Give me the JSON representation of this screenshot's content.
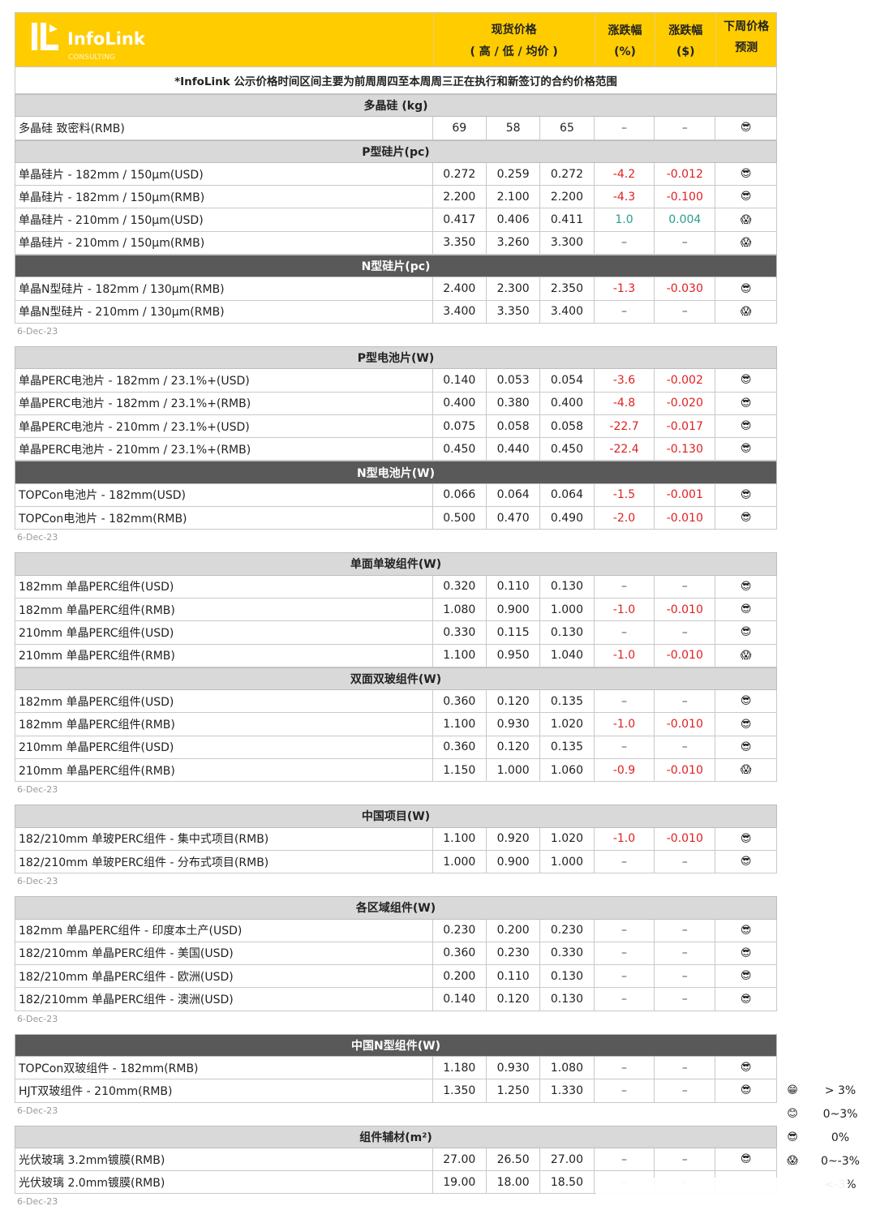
{
  "header": {
    "brand": "InfoLink",
    "brand_sub": "CONSULTING",
    "spot_price": "现货价格",
    "spot_sub": "( 高 / 低 / 均价 )",
    "chg_pct": "涨跌幅",
    "chg_pct_unit": "(%)",
    "chg_usd": "涨跌幅",
    "chg_usd_unit": "($)",
    "forecast": "下周价格",
    "forecast_sub": "预测"
  },
  "notice": "*InfoLink 公示价格时间区间主要为前周周四至本周周三正在执行和新签订的合约价格范围",
  "colors": {
    "header_bg": "#ffcc00",
    "section_light": "#d9d9d9",
    "section_dark": "#595959",
    "negative": "#e02020",
    "positive": "#2a9d8f"
  },
  "icons": {
    "sunglasses": "😎",
    "scream": "😱",
    "grin": "😁",
    "smile": "😊"
  },
  "blocks": [
    {
      "date": "6-Dec-23",
      "sections": [
        {
          "title": "多晶硅 (kg)",
          "dark": false,
          "rows": [
            [
              "多晶硅 致密料(RMB)",
              "69",
              "58",
              "65",
              "–",
              "–",
              "sunglasses"
            ]
          ]
        },
        {
          "title": "P型硅片(pc)",
          "dark": false,
          "rows": [
            [
              "单晶硅片 - 182mm / 150μm(USD)",
              "0.272",
              "0.259",
              "0.272",
              "-4.2",
              "-0.012",
              "sunglasses"
            ],
            [
              "单晶硅片 - 182mm / 150μm(RMB)",
              "2.200",
              "2.100",
              "2.200",
              "-4.3",
              "-0.100",
              "sunglasses"
            ],
            [
              "单晶硅片 - 210mm / 150μm(USD)",
              "0.417",
              "0.406",
              "0.411",
              "1.0",
              "0.004",
              "scream"
            ],
            [
              "单晶硅片 - 210mm / 150μm(RMB)",
              "3.350",
              "3.260",
              "3.300",
              "–",
              "–",
              "scream"
            ]
          ]
        },
        {
          "title": "N型硅片(pc)",
          "dark": true,
          "rows": [
            [
              "单晶N型硅片 - 182mm / 130μm(RMB)",
              "2.400",
              "2.300",
              "2.350",
              "-1.3",
              "-0.030",
              "sunglasses"
            ],
            [
              "单晶N型硅片 - 210mm / 130μm(RMB)",
              "3.400",
              "3.350",
              "3.400",
              "–",
              "–",
              "scream"
            ]
          ]
        }
      ]
    },
    {
      "date": "6-Dec-23",
      "sections": [
        {
          "title": "P型电池片(W)",
          "dark": false,
          "rows": [
            [
              "单晶PERC电池片 - 182mm / 23.1%+(USD)",
              "0.140",
              "0.053",
              "0.054",
              "-3.6",
              "-0.002",
              "sunglasses"
            ],
            [
              "单晶PERC电池片 - 182mm / 23.1%+(RMB)",
              "0.400",
              "0.380",
              "0.400",
              "-4.8",
              "-0.020",
              "sunglasses"
            ],
            [
              "单晶PERC电池片 - 210mm / 23.1%+(USD)",
              "0.075",
              "0.058",
              "0.058",
              "-22.7",
              "-0.017",
              "sunglasses"
            ],
            [
              "单晶PERC电池片 - 210mm / 23.1%+(RMB)",
              "0.450",
              "0.440",
              "0.450",
              "-22.4",
              "-0.130",
              "sunglasses"
            ]
          ]
        },
        {
          "title": "N型电池片(W)",
          "dark": true,
          "rows": [
            [
              "TOPCon电池片 - 182mm(USD)",
              "0.066",
              "0.064",
              "0.064",
              "-1.5",
              "-0.001",
              "sunglasses"
            ],
            [
              "TOPCon电池片 - 182mm(RMB)",
              "0.500",
              "0.470",
              "0.490",
              "-2.0",
              "-0.010",
              "sunglasses"
            ]
          ]
        }
      ]
    },
    {
      "date": "6-Dec-23",
      "sections": [
        {
          "title": "单面单玻组件(W)",
          "dark": false,
          "rows": [
            [
              "182mm 单晶PERC组件(USD)",
              "0.320",
              "0.110",
              "0.130",
              "–",
              "–",
              "sunglasses"
            ],
            [
              "182mm 单晶PERC组件(RMB)",
              "1.080",
              "0.900",
              "1.000",
              "-1.0",
              "-0.010",
              "sunglasses"
            ],
            [
              "210mm 单晶PERC组件(USD)",
              "0.330",
              "0.115",
              "0.130",
              "–",
              "–",
              "sunglasses"
            ],
            [
              "210mm 单晶PERC组件(RMB)",
              "1.100",
              "0.950",
              "1.040",
              "-1.0",
              "-0.010",
              "scream"
            ]
          ]
        },
        {
          "title": "双面双玻组件(W)",
          "dark": false,
          "rows": [
            [
              "182mm 单晶PERC组件(USD)",
              "0.360",
              "0.120",
              "0.135",
              "–",
              "–",
              "sunglasses"
            ],
            [
              "182mm 单晶PERC组件(RMB)",
              "1.100",
              "0.930",
              "1.020",
              "-1.0",
              "-0.010",
              "sunglasses"
            ],
            [
              "210mm 单晶PERC组件(USD)",
              "0.360",
              "0.120",
              "0.135",
              "–",
              "–",
              "sunglasses"
            ],
            [
              "210mm 单晶PERC组件(RMB)",
              "1.150",
              "1.000",
              "1.060",
              "-0.9",
              "-0.010",
              "scream"
            ]
          ]
        }
      ]
    },
    {
      "date": "6-Dec-23",
      "sections": [
        {
          "title": "中国项目(W)",
          "dark": false,
          "rows": [
            [
              "182/210mm 单玻PERC组件 - 集中式项目(RMB)",
              "1.100",
              "0.920",
              "1.020",
              "-1.0",
              "-0.010",
              "sunglasses"
            ],
            [
              "182/210mm 单玻PERC组件 - 分布式项目(RMB)",
              "1.000",
              "0.900",
              "1.000",
              "–",
              "–",
              "sunglasses"
            ]
          ]
        }
      ]
    },
    {
      "date": "6-Dec-23",
      "sections": [
        {
          "title": "各区域组件(W)",
          "dark": false,
          "rows": [
            [
              "182mm 单晶PERC组件 - 印度本土产(USD)",
              "0.230",
              "0.200",
              "0.230",
              "–",
              "–",
              "sunglasses"
            ],
            [
              "182/210mm 单晶PERC组件 - 美国(USD)",
              "0.360",
              "0.230",
              "0.330",
              "–",
              "–",
              "sunglasses"
            ],
            [
              "182/210mm 单晶PERC组件 - 欧洲(USD)",
              "0.200",
              "0.110",
              "0.130",
              "–",
              "–",
              "sunglasses"
            ],
            [
              "182/210mm 单晶PERC组件 - 澳洲(USD)",
              "0.140",
              "0.120",
              "0.130",
              "–",
              "–",
              "sunglasses"
            ]
          ]
        }
      ]
    },
    {
      "date": "6-Dec-23",
      "sections": [
        {
          "title": "中国N型组件(W)",
          "dark": true,
          "rows": [
            [
              "TOPCon双玻组件 - 182mm(RMB)",
              "1.180",
              "0.930",
              "1.080",
              "–",
              "–",
              "sunglasses"
            ],
            [
              "HJT双玻组件 - 210mm(RMB)",
              "1.350",
              "1.250",
              "1.330",
              "–",
              "–",
              "sunglasses"
            ]
          ]
        }
      ]
    },
    {
      "date": "6-Dec-23",
      "sections": [
        {
          "title": "组件辅材(m²)",
          "dark": false,
          "rows": [
            [
              "光伏玻璃 3.2mm镀膜(RMB)",
              "27.00",
              "26.50",
              "27.00",
              "–",
              "–",
              "sunglasses"
            ],
            [
              "光伏玻璃 2.0mm镀膜(RMB)",
              "19.00",
              "18.00",
              "18.50",
              "–",
              "–",
              ""
            ]
          ]
        }
      ]
    }
  ],
  "legend": [
    {
      "icon": "grin",
      "label": "> 3%"
    },
    {
      "icon": "smile",
      "label": "0~3%"
    },
    {
      "icon": "sunglasses",
      "label": "0%"
    },
    {
      "icon": "scream",
      "label": "0~-3%"
    },
    {
      "icon": "",
      "label": "<-3%"
    }
  ]
}
